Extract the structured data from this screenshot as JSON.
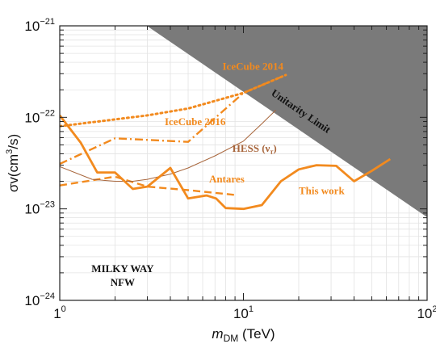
{
  "chart_data": {
    "type": "line",
    "xlabel": {
      "main": "m",
      "sub": "DM",
      "unit": " (TeV)"
    },
    "ylabel": {
      "pre": "σv(cm",
      "sup": "3",
      "post": "/s)"
    },
    "xscale": "log",
    "yscale": "log",
    "xlim": [
      1,
      100
    ],
    "ylim": [
      1e-24,
      1e-21
    ],
    "grid": true,
    "x_ticks": [
      {
        "value": 1,
        "label": "1",
        "exp": "0"
      },
      {
        "value": 10,
        "label": "10",
        "exp": "1"
      },
      {
        "value": 100,
        "label": "10",
        "exp": "2"
      }
    ],
    "y_ticks": [
      {
        "value": 1e-24,
        "label": "10",
        "exp": "−24"
      },
      {
        "value": 1e-23,
        "label": "10",
        "exp": "−23"
      },
      {
        "value": 1e-22,
        "label": "10",
        "exp": "−22"
      },
      {
        "value": 1e-21,
        "label": "10",
        "exp": "−21"
      }
    ],
    "unitarity": {
      "label": "Unitarity Limit",
      "boundary_x": [
        2.98,
        100
      ],
      "boundary_y": [
        1e-21,
        8.1e-24
      ],
      "fill": "#7a7a7a"
    },
    "series": [
      {
        "name": "IceCube 2014",
        "style": "dotted",
        "color": "#f28a1e",
        "x": [
          1,
          2,
          3,
          5,
          10,
          17
        ],
        "y": [
          8e-23,
          9.5e-23,
          1.05e-22,
          1.25e-22,
          1.85e-22,
          2.9e-22
        ]
      },
      {
        "name": "IceCube 2016",
        "style": "dashdot",
        "color": "#f28a1e",
        "x": [
          1,
          2,
          5,
          10,
          17
        ],
        "y": [
          3.1e-23,
          5.9e-23,
          5.4e-23,
          1.85e-22,
          2.9e-22
        ]
      },
      {
        "name": "Antares",
        "style": "dashed",
        "color": "#f28a1e",
        "x": [
          1,
          2,
          3,
          5,
          9
        ],
        "y": [
          1.8e-23,
          2.25e-23,
          1.75e-23,
          1.6e-23,
          1.42e-23
        ]
      },
      {
        "name": "HESS (ντ)",
        "style": "solid-thin",
        "color": "#a8663c",
        "x": [
          1,
          1.5,
          2,
          2.5,
          3,
          4,
          5,
          7,
          10,
          12.6,
          15
        ],
        "y": [
          2.9e-23,
          2.1e-23,
          2e-23,
          2e-23,
          2.1e-23,
          2.4e-23,
          2.8e-23,
          3.8e-23,
          5.5e-23,
          8.5e-23,
          1.2e-22
        ]
      },
      {
        "name": "This work",
        "style": "solid-thick",
        "color": "#f28a1e",
        "x": [
          1,
          1.3,
          1.6,
          2,
          2.5,
          3,
          4,
          5,
          6.3,
          7.1,
          8,
          10,
          12.6,
          16,
          20,
          25,
          32,
          40,
          50,
          63
        ],
        "y": [
          1.05e-22,
          5.3e-23,
          2.5e-23,
          2.5e-23,
          1.65e-23,
          1.75e-23,
          2.8e-23,
          1.3e-23,
          1.4e-23,
          1.3e-23,
          1.02e-23,
          1e-23,
          1.1e-23,
          2e-23,
          2.7e-23,
          3e-23,
          2.95e-23,
          2e-23,
          2.6e-23,
          3.5e-23
        ]
      }
    ],
    "annotations": [
      {
        "id": "icecube2014",
        "text": "IceCube 2014",
        "x": 16.5,
        "y": 3.3e-22,
        "color": "#f28a1e",
        "anchor": "end"
      },
      {
        "id": "icecube2016",
        "text": "IceCube 2016",
        "x": 8.0,
        "y": 8.2e-23,
        "color": "#f28a1e",
        "anchor": "end"
      },
      {
        "id": "hess",
        "text": "HESS (ν",
        "sub": "τ",
        "close": ")",
        "x": 8.7,
        "y": 4.2e-23,
        "color": "#a8663c",
        "anchor": "start"
      },
      {
        "id": "antares",
        "text": "Antares",
        "x": 6.5,
        "y": 1.95e-23,
        "color": "#f28a1e",
        "anchor": "start"
      },
      {
        "id": "thiswork",
        "text": "This work",
        "x": 20,
        "y": 1.45e-23,
        "color": "#f28a1e",
        "anchor": "start"
      },
      {
        "id": "milkyway",
        "text": "MILKY WAY",
        "x": 2.2,
        "y": 1.15e-24,
        "dy": -28,
        "color": "#111111",
        "anchor": "middle"
      },
      {
        "id": "nfw",
        "text": "NFW",
        "x": 2.2,
        "y": 1.15e-24,
        "dy": -11,
        "color": "#111111",
        "anchor": "middle"
      }
    ]
  }
}
